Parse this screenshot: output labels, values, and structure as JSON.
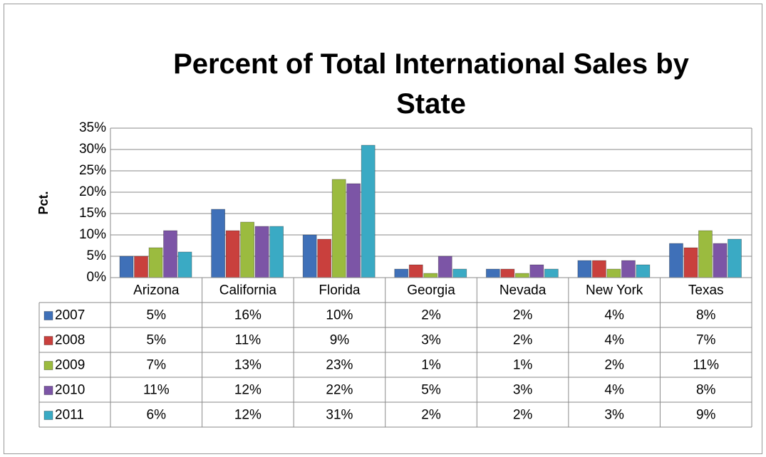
{
  "chart_data": {
    "type": "bar",
    "title": "Percent of Total International Sales by State",
    "y_label": "Pct.",
    "categories": [
      "Arizona",
      "California",
      "Florida",
      "Georgia",
      "Nevada",
      "New York",
      "Texas"
    ],
    "series": [
      {
        "name": "2007",
        "color": "#3f70b8",
        "values": [
          5,
          16,
          10,
          2,
          2,
          4,
          8
        ],
        "value_labels": [
          "5%",
          "16%",
          "10%",
          "2%",
          "2%",
          "4%",
          "8%"
        ]
      },
      {
        "name": "2008",
        "color": "#c9403d",
        "values": [
          5,
          11,
          9,
          3,
          2,
          4,
          7
        ],
        "value_labels": [
          "5%",
          "11%",
          "9%",
          "3%",
          "2%",
          "4%",
          "7%"
        ]
      },
      {
        "name": "2009",
        "color": "#9bbb3f",
        "values": [
          7,
          13,
          23,
          1,
          1,
          2,
          11
        ],
        "value_labels": [
          "7%",
          "13%",
          "23%",
          "1%",
          "1%",
          "2%",
          "11%"
        ]
      },
      {
        "name": "2010",
        "color": "#7c55a6",
        "values": [
          11,
          12,
          22,
          5,
          3,
          4,
          8
        ],
        "value_labels": [
          "11%",
          "12%",
          "22%",
          "5%",
          "3%",
          "4%",
          "8%"
        ]
      },
      {
        "name": "2011",
        "color": "#3aaac4",
        "values": [
          6,
          12,
          31,
          2,
          2,
          3,
          9
        ],
        "value_labels": [
          "6%",
          "12%",
          "31%",
          "2%",
          "2%",
          "3%",
          "9%"
        ]
      }
    ],
    "ylim": [
      0,
      35
    ],
    "yticks": [
      {
        "value": 0,
        "label": "0%"
      },
      {
        "value": 5,
        "label": "5%"
      },
      {
        "value": 10,
        "label": "10%"
      },
      {
        "value": 15,
        "label": "15%"
      },
      {
        "value": 20,
        "label": "20%"
      },
      {
        "value": 25,
        "label": "25%"
      },
      {
        "value": 30,
        "label": "30%"
      },
      {
        "value": 35,
        "label": "35%"
      }
    ],
    "grid": true
  }
}
